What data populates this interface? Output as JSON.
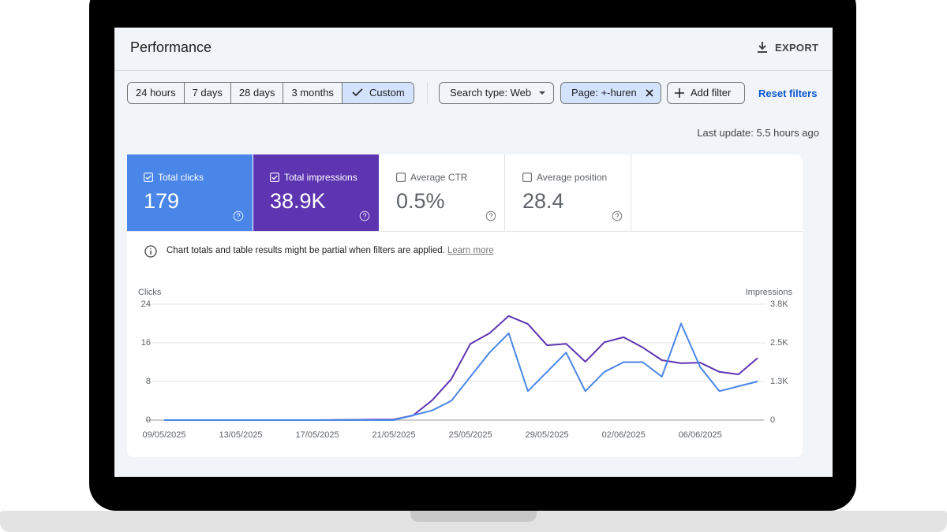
{
  "header": {
    "title": "Performance",
    "export": "EXPORT"
  },
  "filters": {
    "date_ranges": [
      "24 hours",
      "7 days",
      "28 days",
      "3 months",
      "Custom"
    ],
    "selected": 4,
    "search_type": "Search type: Web",
    "page_filter": "Page: +-huren",
    "add_filter": "Add filter",
    "reset_filters": "Reset filters"
  },
  "last_update": "Last update: 5.5 hours ago",
  "metrics": [
    {
      "label": "Total clicks",
      "value": "179",
      "checked": true
    },
    {
      "label": "Total impressions",
      "value": "38.9K",
      "checked": true
    },
    {
      "label": "Average CTR",
      "value": "0.5%",
      "checked": false
    },
    {
      "label": "Average position",
      "value": "28.4",
      "checked": false
    }
  ],
  "notice": {
    "text": "Chart totals and table results might be partial when filters are applied.",
    "link": "Learn more"
  },
  "chart_data": {
    "type": "line",
    "categories": [
      "09/05/2025",
      null,
      null,
      null,
      "13/05/2025",
      null,
      null,
      null,
      "17/05/2025",
      null,
      null,
      null,
      "21/05/2025",
      null,
      null,
      null,
      "25/05/2025",
      null,
      null,
      null,
      "29/05/2025",
      null,
      null,
      null,
      "02/06/2025",
      null,
      null,
      null,
      "06/06/2025",
      null,
      null,
      null
    ],
    "series": [
      {
        "name": "Clicks",
        "color": "#4a86e8",
        "axis": "y",
        "values": [
          0,
          0,
          0,
          0,
          0,
          0,
          0,
          0,
          0,
          0,
          0,
          0,
          0,
          1,
          2,
          4,
          9,
          14,
          18,
          6,
          10,
          14,
          6,
          10,
          12,
          12,
          9,
          20,
          11,
          6,
          7,
          8
        ]
      },
      {
        "name": "Impressions",
        "color": "#5e35b1",
        "axis": "y2",
        "values": [
          0,
          0,
          0,
          0,
          0,
          0,
          0,
          0,
          0,
          5,
          10,
          15,
          20,
          150,
          640,
          1330,
          2470,
          2810,
          3370,
          3110,
          2420,
          2470,
          1890,
          2520,
          2680,
          2350,
          1940,
          1840,
          1860,
          1560,
          1480,
          2010
        ]
      }
    ],
    "ylim": [
      0,
      24
    ],
    "yticks": [
      0,
      8,
      16,
      24
    ],
    "y2lim": [
      0,
      3750
    ],
    "y2ticks": [
      0,
      {
        "value": 1250,
        "label": "1.3K"
      },
      {
        "value": 2500,
        "label": "2.5K"
      },
      {
        "value": 3750,
        "label": "3.8K"
      }
    ],
    "grid": true
  }
}
